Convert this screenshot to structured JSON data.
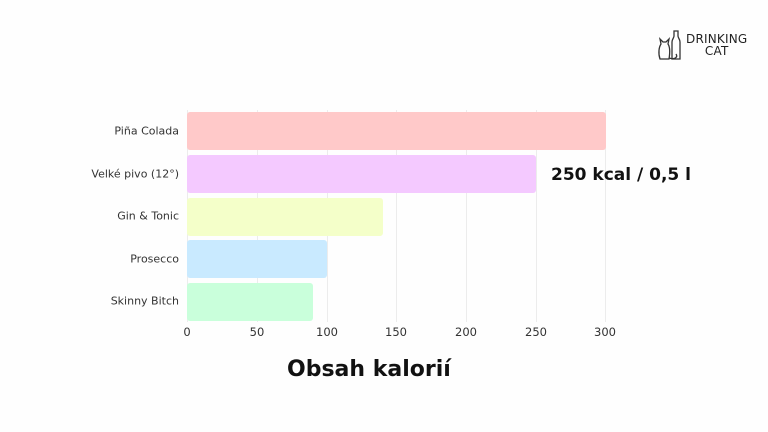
{
  "logo": {
    "line1": "DRINKING",
    "line2": "CAT"
  },
  "chart_data": {
    "type": "bar",
    "orientation": "horizontal",
    "title": "Obsah kalorií",
    "xlabel": "",
    "ylabel": "",
    "categories": [
      "Piña Colada",
      "Velké pivo (12°)",
      "Gin & Tonic",
      "Prosecco",
      "Skinny Bitch"
    ],
    "values": [
      300,
      250,
      140,
      100,
      90
    ],
    "colors": [
      "#ffc9c9",
      "#f4c9ff",
      "#f4ffc9",
      "#c9eaff",
      "#c9ffdb"
    ],
    "xlim": [
      0,
      300
    ],
    "xticks": [
      "0",
      "50",
      "100",
      "150",
      "200",
      "250",
      "300"
    ],
    "grid": true,
    "legend": null,
    "annotations": [
      {
        "target": "Velké pivo (12°)",
        "text": "250 kcal / 0,5 l"
      }
    ]
  }
}
